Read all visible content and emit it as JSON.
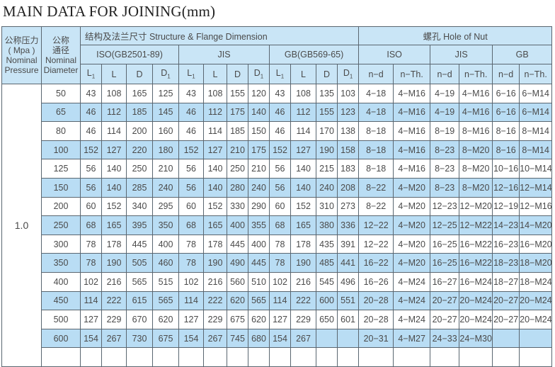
{
  "title": "MAIN DATA FOR JOINING(mm)",
  "header": {
    "pressure": [
      "公称压力",
      "( Mpa )",
      "Nominal",
      "Pressure"
    ],
    "diameter": [
      "公称",
      "通径",
      "Nominal",
      "Diameter"
    ],
    "structure": "结构及法兰尺寸 Structure & Flange Dimension",
    "hole": "螺孔  Hole of Nut",
    "standards": [
      "ISO(GB2501-89)",
      "JIS",
      "GB(GB569-65)"
    ],
    "hole_standards": [
      "ISO",
      "JIS",
      "GB"
    ],
    "dim_cols": [
      "L",
      "L",
      "D",
      "D"
    ],
    "dim_subs": [
      "1",
      "",
      "",
      "1"
    ],
    "hole_cols": [
      "n−d",
      "n−Th.",
      "n−d",
      "n−Th.",
      "n−d",
      "n−Th."
    ]
  },
  "pressure_value": "1.0",
  "rows": [
    [
      "50",
      "43",
      "108",
      "165",
      "125",
      "43",
      "108",
      "155",
      "120",
      "43",
      "108",
      "135",
      "103",
      "4−18",
      "4−M16",
      "4−19",
      "4−M16",
      "6−16",
      "6−M14"
    ],
    [
      "65",
      "46",
      "112",
      "185",
      "145",
      "46",
      "112",
      "175",
      "140",
      "46",
      "112",
      "155",
      "123",
      "4−18",
      "4−M16",
      "4−19",
      "4−M16",
      "6−16",
      "6−M14"
    ],
    [
      "80",
      "46",
      "114",
      "200",
      "160",
      "46",
      "114",
      "185",
      "150",
      "46",
      "114",
      "170",
      "138",
      "8−18",
      "4−M16",
      "8−19",
      "8−M16",
      "8−16",
      "8−M14"
    ],
    [
      "100",
      "152",
      "127",
      "220",
      "180",
      "152",
      "127",
      "210",
      "175",
      "152",
      "127",
      "190",
      "158",
      "8−18",
      "4−M16",
      "8−23",
      "8−M20",
      "8−16",
      "8−M14"
    ],
    [
      "125",
      "56",
      "140",
      "250",
      "210",
      "56",
      "140",
      "250",
      "210",
      "56",
      "140",
      "215",
      "183",
      "8−18",
      "4−M16",
      "8−23",
      "8−M20",
      "10−16",
      "10−M14"
    ],
    [
      "150",
      "56",
      "140",
      "285",
      "240",
      "56",
      "140",
      "280",
      "240",
      "56",
      "140",
      "240",
      "208",
      "8−22",
      "4−M20",
      "8−23",
      "8−M20",
      "12−16",
      "12−M14"
    ],
    [
      "200",
      "60",
      "152",
      "340",
      "295",
      "60",
      "152",
      "330",
      "290",
      "60",
      "152",
      "310",
      "273",
      "8−22",
      "4−M20",
      "12−23",
      "12−M20",
      "12−19",
      "12−M16"
    ],
    [
      "250",
      "68",
      "165",
      "395",
      "350",
      "68",
      "165",
      "400",
      "355",
      "68",
      "165",
      "380",
      "336",
      "12−22",
      "4−M20",
      "12−25",
      "12−M22",
      "14−23",
      "14−M20"
    ],
    [
      "300",
      "78",
      "178",
      "445",
      "400",
      "78",
      "178",
      "445",
      "400",
      "78",
      "178",
      "435",
      "391",
      "12−22",
      "4−M20",
      "16−25",
      "16−M22",
      "16−23",
      "16−M20"
    ],
    [
      "350",
      "78",
      "190",
      "505",
      "460",
      "78",
      "190",
      "490",
      "445",
      "78",
      "190",
      "485",
      "441",
      "16−22",
      "4−M20",
      "16−25",
      "16−M22",
      "18−23",
      "18−M20"
    ],
    [
      "400",
      "102",
      "216",
      "565",
      "515",
      "102",
      "216",
      "560",
      "510",
      "102",
      "216",
      "545",
      "496",
      "16−26",
      "4−M24",
      "16−27",
      "16−M24",
      "18−27",
      "18−M24"
    ],
    [
      "450",
      "114",
      "222",
      "615",
      "565",
      "114",
      "222",
      "620",
      "565",
      "114",
      "222",
      "600",
      "551",
      "20−28",
      "4−M24",
      "20−27",
      "20−M24",
      "20−27",
      "20−M24"
    ],
    [
      "500",
      "127",
      "229",
      "670",
      "620",
      "127",
      "229",
      "675",
      "620",
      "127",
      "229",
      "650",
      "601",
      "20−28",
      "4−M24",
      "20−27",
      "20−M24",
      "20−27",
      "20−M24"
    ],
    [
      "600",
      "154",
      "267",
      "730",
      "675",
      "154",
      "267",
      "745",
      "680",
      "154",
      "267",
      "",
      "",
      "20−31",
      "4−M27",
      "24−33",
      "24−M30",
      "",
      ""
    ],
    [
      "",
      "",
      "",
      "",
      "",
      "",
      "",
      "",
      "",
      "",
      "",
      "",
      "",
      "",
      "",
      "",
      "",
      "",
      ""
    ]
  ],
  "colors": {
    "header_bg": "#c9e5f6",
    "stripe_bg": "#b9ddf4",
    "border": "#5a6670",
    "text": "#4a4a4a"
  }
}
